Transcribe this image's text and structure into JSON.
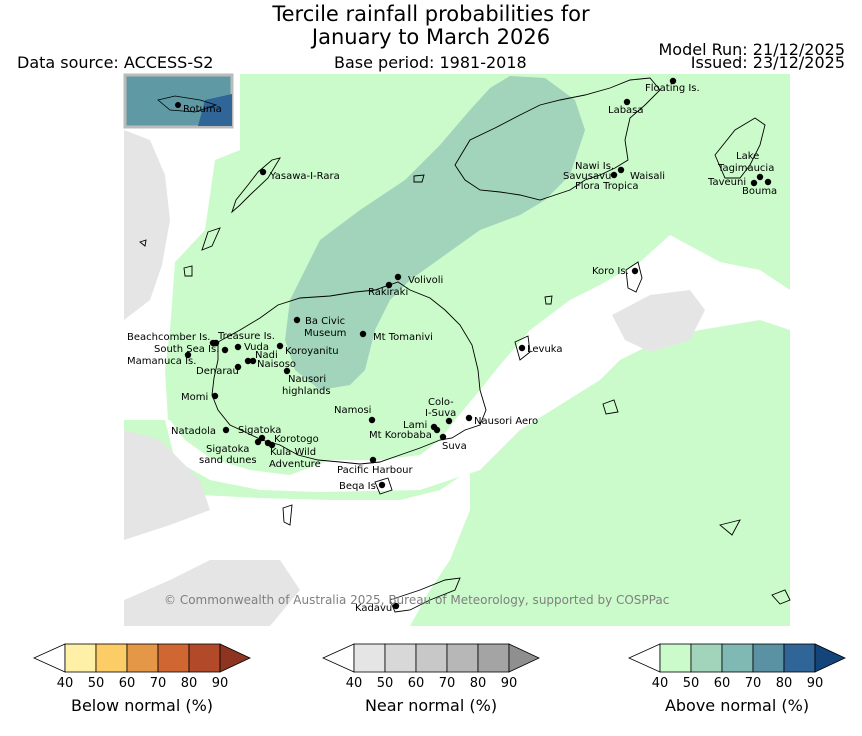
{
  "header": {
    "title_line1": "Tercile rainfall probabilities for",
    "title_line2": "January to March 2026",
    "data_source": "Data source: ACCESS-S2",
    "base_period": "Base period: 1981-2018",
    "model_run": "Model Run: 21/12/2025",
    "issued": "Issued: 23/12/2025"
  },
  "map": {
    "inset_label": "Rotuma",
    "copyright": "© Commonwealth of Australia 2025, Bureau of Meteorology, supported by COSPPac",
    "places": [
      "Floating Is.",
      "Labasa",
      "Yasawa-I-Rara",
      "Nawi Is.",
      "Savusavu",
      "Waisali",
      "Flora Tropica",
      "Lake",
      "Tagimaucia",
      "Taveuni",
      "Bouma",
      "Koro Is.",
      "Volivoli",
      "Rakiraki",
      "Ba Civic",
      "Museum",
      "Mt Tomanivi",
      "Beachcomber Is.",
      "Treasure Is.",
      "Vuda",
      "South Sea Is.",
      "Nadi",
      "Koroyanitu",
      "Mamanuca Is.",
      "Naisoso",
      "Denarau",
      "Nausori",
      "highlands",
      "Levuka",
      "Momi",
      "Colo-",
      "I-Suva",
      "Namosi",
      "Nausori Aero",
      "Natadola",
      "Sigatoka",
      "Lami",
      "Mt Korobaba",
      "Korotogo",
      "Suva",
      "Sigatoka",
      "sand dunes",
      "Kula Wild",
      "Adventure",
      "Pacific Harbour",
      "Beqa Is.",
      "Kadavu"
    ]
  },
  "legends": {
    "below": {
      "label": "Below normal (%)",
      "colors": [
        "#fff0a8",
        "#fccc66",
        "#e59748",
        "#d06733",
        "#b24a29",
        "#8d3521"
      ]
    },
    "near": {
      "label": "Near normal (%)",
      "colors": [
        "#e5e5e5",
        "#d8d8d8",
        "#c8c8c8",
        "#b7b7b7",
        "#a4a4a4",
        "#8f8f8f"
      ]
    },
    "above": {
      "label": "Above normal (%)",
      "colors": [
        "#cbfbcb",
        "#a1d4bb",
        "#80b8b3",
        "#5a92a3",
        "#2f6597",
        "#13447a"
      ]
    },
    "ticks": [
      "40",
      "50",
      "60",
      "70",
      "80",
      "90"
    ]
  },
  "colors": {
    "above_40_50": "#cbfbcb",
    "above_50_60": "#a1d4bb",
    "near_40_50": "#e5e5e5",
    "inset_bg": "#5f9aa4"
  }
}
